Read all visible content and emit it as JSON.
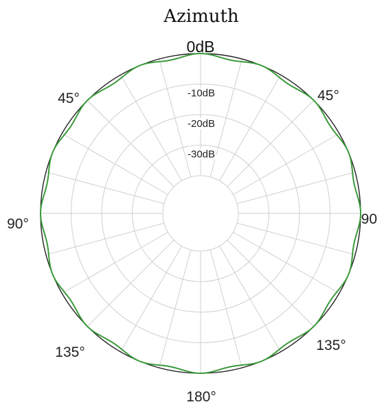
{
  "chart_data": {
    "type": "polar-line",
    "title": "Azimuth",
    "radial_axis": {
      "unit": "dB",
      "range": [
        -40,
        0
      ],
      "rings": [
        0,
        -10,
        -20,
        -30,
        -40
      ],
      "ring_labels": [
        "0dB",
        "-10dB",
        "-20dB",
        "-30dB"
      ]
    },
    "angular_axis": {
      "labels": [
        {
          "text": "0dB",
          "angle": 0
        },
        {
          "text": "45°",
          "angle": 45
        },
        {
          "text": "90",
          "angle": 90
        },
        {
          "text": "135°",
          "angle": 135
        },
        {
          "text": "180°",
          "angle": 180
        },
        {
          "text": "135°",
          "angle": 225
        },
        {
          "text": "90°",
          "angle": 270
        },
        {
          "text": "45°",
          "angle": 315
        }
      ],
      "spoke_step_deg": 15
    },
    "series": [
      {
        "color": "#3a9a3a",
        "pattern": {
          "base_db": 0,
          "ripple_db": -1.2,
          "lobes": 16
        }
      }
    ],
    "colors": {
      "grid": "#cfcfcf",
      "outer_ring": "#222222"
    }
  }
}
